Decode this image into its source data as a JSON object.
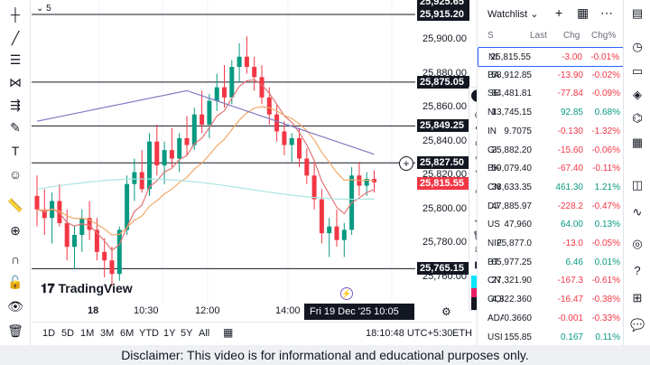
{
  "chart": {
    "series_count": "5",
    "logo": "TradingView",
    "price_ticks": [
      "25,900.00",
      "25,880.00",
      "25,860.00",
      "25,840.00",
      "25,820.00",
      "25,800.00",
      "25,780.00",
      "25,760.00"
    ],
    "price_tags": [
      {
        "label": "25,925.65",
        "style": "dark"
      },
      {
        "label": "25,915.20",
        "style": "dark"
      },
      {
        "label": "25,875.05",
        "style": "dark"
      },
      {
        "label": "25,849.25",
        "style": "dark"
      },
      {
        "label": "25,827.50",
        "style": "dark"
      },
      {
        "label": "25,815.55",
        "style": "red"
      },
      {
        "label": "25,765.15",
        "style": "dark"
      }
    ],
    "time_ticks": [
      "18",
      "10:30",
      "12:00",
      "14:00"
    ],
    "time_cursor": "Fri 19 Dec '25   10:05",
    "colors": {
      "up": "#089981",
      "down": "#f23645",
      "ema_fast": "#e57373",
      "ema_slow": "#f0a868",
      "sma": "#7e7cc0",
      "band": "#a8e6e1"
    }
  },
  "bottom": {
    "ranges": [
      "1D",
      "5D",
      "1M",
      "3M",
      "6M",
      "YTD",
      "1Y",
      "5Y",
      "All"
    ],
    "clock": "18:10:48 UTC+5:30",
    "session": "ETH"
  },
  "watchlist": {
    "title": "Watchlist",
    "columns": {
      "sym": "S",
      "last": "Last",
      "chg": "Chg",
      "pct": "Chg%"
    },
    "rows": [
      {
        "sym": "NI",
        "last": "25,815.55",
        "chg": "-3.00",
        "pct": "-0.01%",
        "dir": "neg"
      },
      {
        "sym": "BA",
        "last": "58,912.85",
        "chg": "-13.90",
        "pct": "-0.02%",
        "dir": "neg"
      },
      {
        "sym": "SE",
        "last": "84,481.81",
        "chg": "-77.84",
        "pct": "-0.09%",
        "dir": "neg"
      },
      {
        "sym": "NI",
        "last": "13,745.15",
        "chg": "92.85",
        "pct": "0.68%",
        "dir": "pos"
      },
      {
        "sym": "IN",
        "last": "9.7075",
        "chg": "-0.130",
        "pct": "-1.32%",
        "dir": "neg"
      },
      {
        "sym": "GI",
        "last": "25,882.20",
        "chg": "-15.60",
        "pct": "-0.06%",
        "dir": "neg"
      },
      {
        "sym": "BK",
        "last": "59,079.40",
        "chg": "-67.40",
        "pct": "-0.11%",
        "dir": "neg"
      },
      {
        "sym": "CN",
        "last": "38,633.35",
        "chg": "461.30",
        "pct": "1.21%",
        "dir": "pos"
      },
      {
        "sym": "DJ",
        "last": "47,885.97",
        "chg": "-228.2",
        "pct": "-0.47%",
        "dir": "neg"
      },
      {
        "sym": "US",
        "last": "47,960",
        "chg": "64.00",
        "pct": "0.13%",
        "dir": "pos"
      },
      {
        "sym": "NIF",
        "last": "25,877.0",
        "chg": "-13.0",
        "pct": "-0.05%",
        "dir": "neg"
      },
      {
        "sym": "BT",
        "last": "65,977.25",
        "chg": "6.46",
        "pct": "0.01%",
        "dir": "pos"
      },
      {
        "sym": "CN",
        "last": "27,321.90",
        "chg": "-167.3",
        "pct": "-0.61%",
        "dir": "neg"
      },
      {
        "sym": "GOI",
        "last": "4,322.360",
        "chg": "-16.47",
        "pct": "-0.38%",
        "dir": "neg"
      },
      {
        "sym": "ADA",
        "last": "0.3660",
        "chg": "-0.001",
        "pct": "-0.33%",
        "dir": "neg"
      },
      {
        "sym": "USI",
        "last": "155.85",
        "chg": "0.167",
        "pct": "0.11%",
        "dir": "pos"
      }
    ]
  },
  "disclaimer": "Disclaimer: This video is for informational and educational purposes only."
}
